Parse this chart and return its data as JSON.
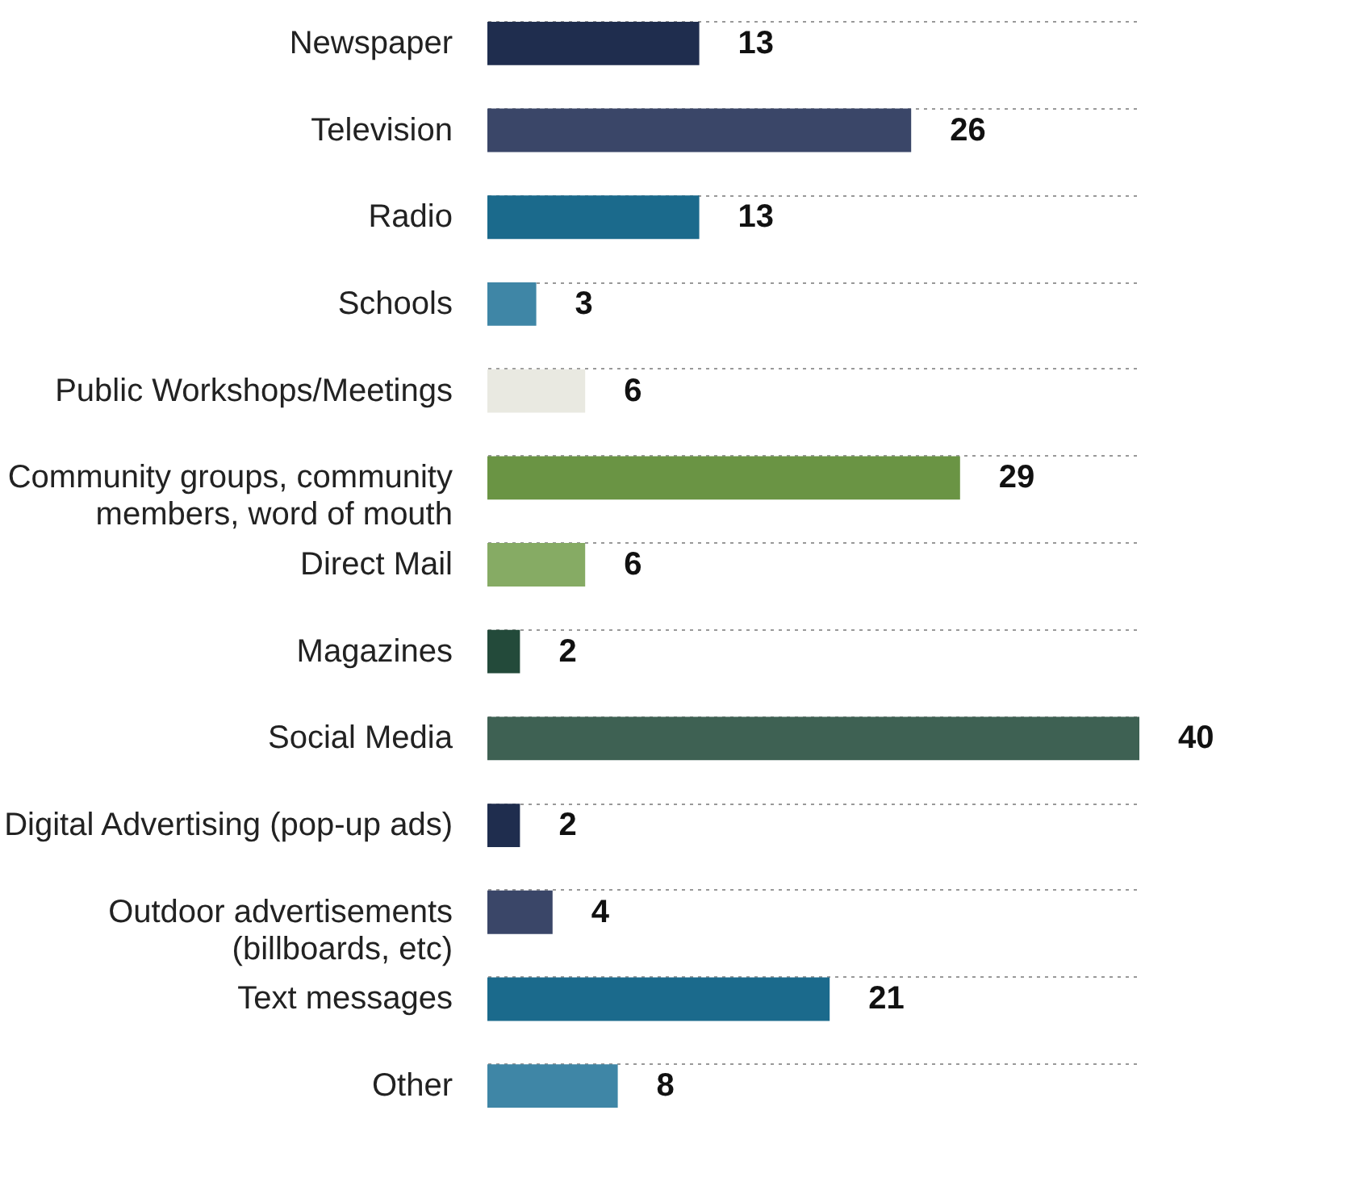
{
  "chart_data": {
    "type": "bar",
    "orientation": "horizontal",
    "data_labels": true,
    "grid": "y",
    "categories": [
      "Newspaper",
      "Television",
      "Radio",
      "Schools",
      "Public Workshops/Meetings",
      "Community groups, community members, word of mouth",
      "Direct Mail",
      "Magazines",
      "Social Media",
      "Digital Advertising (pop-up ads)",
      "Outdoor advertisements (billboards, etc)",
      "Text messages",
      "Other"
    ],
    "values": [
      13,
      26,
      13,
      3,
      6,
      29,
      6,
      2,
      40,
      2,
      4,
      21,
      8
    ],
    "colors": [
      "#1f2d4e",
      "#3a4668",
      "#1b6a8c",
      "#3f86a6",
      "#e9e9e1",
      "#6a9444",
      "#86ab64",
      "#234a3a",
      "#3e6153",
      "#1f2d4e",
      "#3a4668",
      "#1b6a8c",
      "#3f86a6"
    ]
  }
}
